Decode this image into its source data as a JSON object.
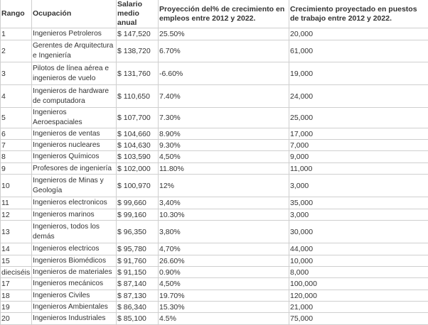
{
  "table": {
    "headers": [
      "Rango",
      "Ocupación",
      "Salario medio anual",
      "Proyección del% de crecimiento en empleos entre 2012 y 2022.",
      "Crecimiento proyectado en puestos de trabajo entre 2012 y 2022."
    ],
    "rows": [
      [
        "1",
        "Ingenieros Petroleros",
        "$ 147,520",
        "25.50%",
        "20,000"
      ],
      [
        "2",
        "Gerentes de Arquitectura e Ingeniería",
        "$ 138,720",
        "6.70%",
        "61,000"
      ],
      [
        "3",
        "Pilotos de línea aérea e ingenieros de vuelo",
        "$ 131,760",
        "-6.60%",
        "19,000"
      ],
      [
        "4",
        "Ingenieros de hardware de computadora",
        "$ 110,650",
        "7.40%",
        "24,000"
      ],
      [
        "5",
        "Ingenieros Aeroespaciales",
        "$ 107,700",
        "7.30%",
        "25,000"
      ],
      [
        "6",
        "Ingenieros de ventas",
        "$ 104,660",
        "8.90%",
        "17,000"
      ],
      [
        "7",
        "Ingenieros nucleares",
        "$ 104,630",
        "9.30%",
        "7,000"
      ],
      [
        "8",
        "Ingenieros Químicos",
        "$ 103,590",
        "4,50%",
        "9,000"
      ],
      [
        "9",
        "Profesores de ingeniería",
        "$ 102,000",
        "11.80%",
        "11,000"
      ],
      [
        "10",
        "Ingenieros de Minas y Geología",
        "$ 100,970",
        "12%",
        "3,000"
      ],
      [
        "11",
        "Ingenieros electronicos",
        "$ 99,660",
        "3,40%",
        "35,000"
      ],
      [
        "12",
        "Ingenieros marinos",
        "$ 99,160",
        "10.30%",
        "3,000"
      ],
      [
        "13",
        "Ingenieros, todos los demás",
        "$ 96,350",
        "3,80%",
        "30,000"
      ],
      [
        "14",
        "Ingenieros electricos",
        "$ 95,780",
        "4,70%",
        "44,000"
      ],
      [
        "15",
        "Ingenieros Biomédicos",
        "$ 91,760",
        "26.60%",
        "10,000"
      ],
      [
        "dieciséis",
        "Ingenieros de materiales",
        "$ 91,150",
        "0.90%",
        "8,000"
      ],
      [
        "17",
        "Ingenieros mecánicos",
        "$ 87,140",
        "4,50%",
        "100,000"
      ],
      [
        "18",
        "Ingenieros Civiles",
        "$ 87,130",
        "19.70%",
        "120,000"
      ],
      [
        "19",
        "Ingenieros Ambientales",
        "$ 86,340",
        "15.30%",
        "21,000"
      ],
      [
        "20",
        "Ingenieros Industriales",
        "$ 85,100",
        "4.5%",
        "75,000"
      ]
    ]
  }
}
